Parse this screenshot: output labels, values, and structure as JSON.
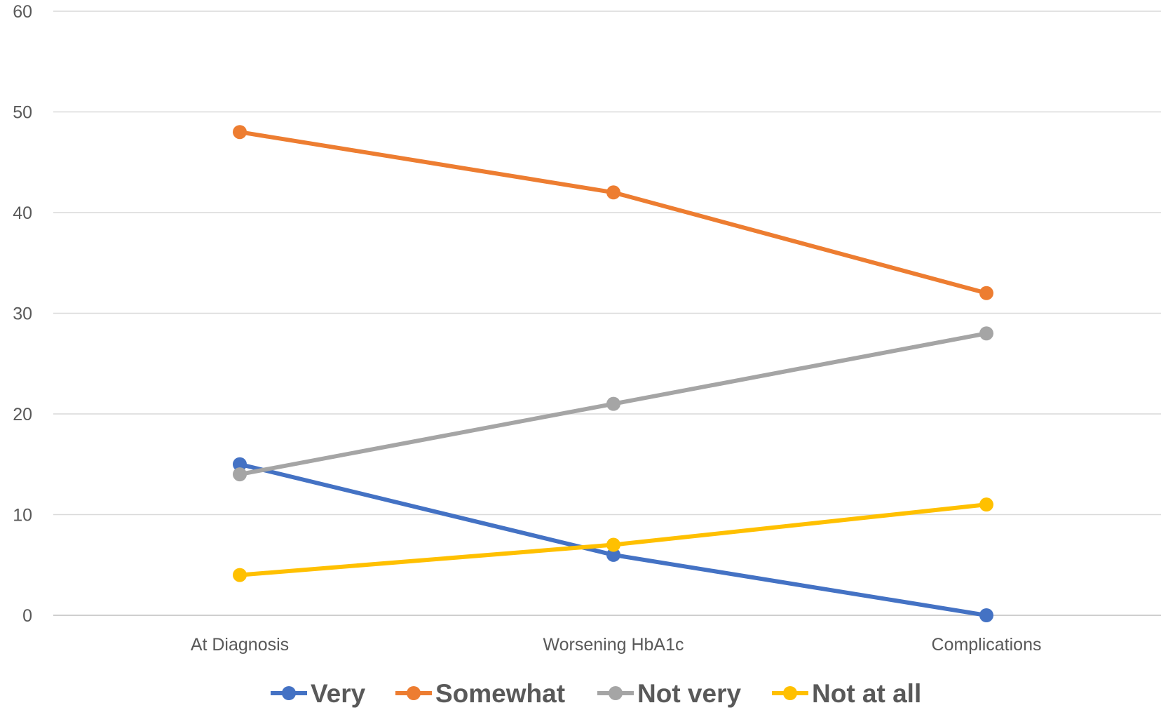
{
  "chart_data": {
    "type": "line",
    "categories": [
      "At Diagnosis",
      "Worsening HbA1c",
      "Complications"
    ],
    "series": [
      {
        "name": "Very",
        "color": "#4472C4",
        "values": [
          15,
          6,
          0
        ]
      },
      {
        "name": "Somewhat",
        "color": "#ED7D31",
        "values": [
          48,
          42,
          32
        ]
      },
      {
        "name": "Not very",
        "color": "#A5A5A5",
        "values": [
          14,
          21,
          28
        ]
      },
      {
        "name": "Not at all",
        "color": "#FFC000",
        "values": [
          4,
          7,
          11
        ]
      }
    ],
    "ylim": [
      0,
      60
    ],
    "yticks": [
      "0",
      "10",
      "20",
      "30",
      "40",
      "50",
      "60"
    ],
    "grid": true,
    "legend_position": "bottom"
  }
}
